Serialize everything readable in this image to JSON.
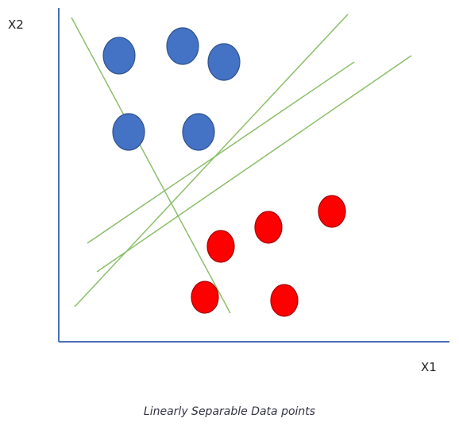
{
  "chart_data": {
    "type": "scatter",
    "title": "",
    "caption": "Linearly Separable Data points",
    "xlabel": "X1",
    "ylabel": "X2",
    "grid": false,
    "legend": "none",
    "colors": {
      "axis": "#4a6fb5",
      "class_a": "#4472c4",
      "class_a_edge": "#2f528f",
      "class_b": "#ff0000",
      "class_b_edge": "#a50000",
      "line": "#8cbf6a"
    },
    "series": [
      {
        "class": "blue",
        "points": [
          [
            1.9,
            9.0
          ],
          [
            3.9,
            9.3
          ],
          [
            5.2,
            8.8
          ],
          [
            2.2,
            6.6
          ],
          [
            4.4,
            6.6
          ]
        ]
      },
      {
        "class": "red",
        "points": [
          [
            5.1,
            3.0
          ],
          [
            6.6,
            3.6
          ],
          [
            8.6,
            4.1
          ],
          [
            4.6,
            1.4
          ],
          [
            7.1,
            1.3
          ]
        ]
      }
    ],
    "separating_lines": [
      {
        "from": [
          0.4,
          10.2
        ],
        "to": [
          5.4,
          0.9
        ]
      },
      {
        "from": [
          0.5,
          1.1
        ],
        "to": [
          9.1,
          10.3
        ]
      },
      {
        "from": [
          0.9,
          3.1
        ],
        "to": [
          9.3,
          8.8
        ]
      },
      {
        "from": [
          1.2,
          2.2
        ],
        "to": [
          11.1,
          9.0
        ]
      }
    ]
  }
}
